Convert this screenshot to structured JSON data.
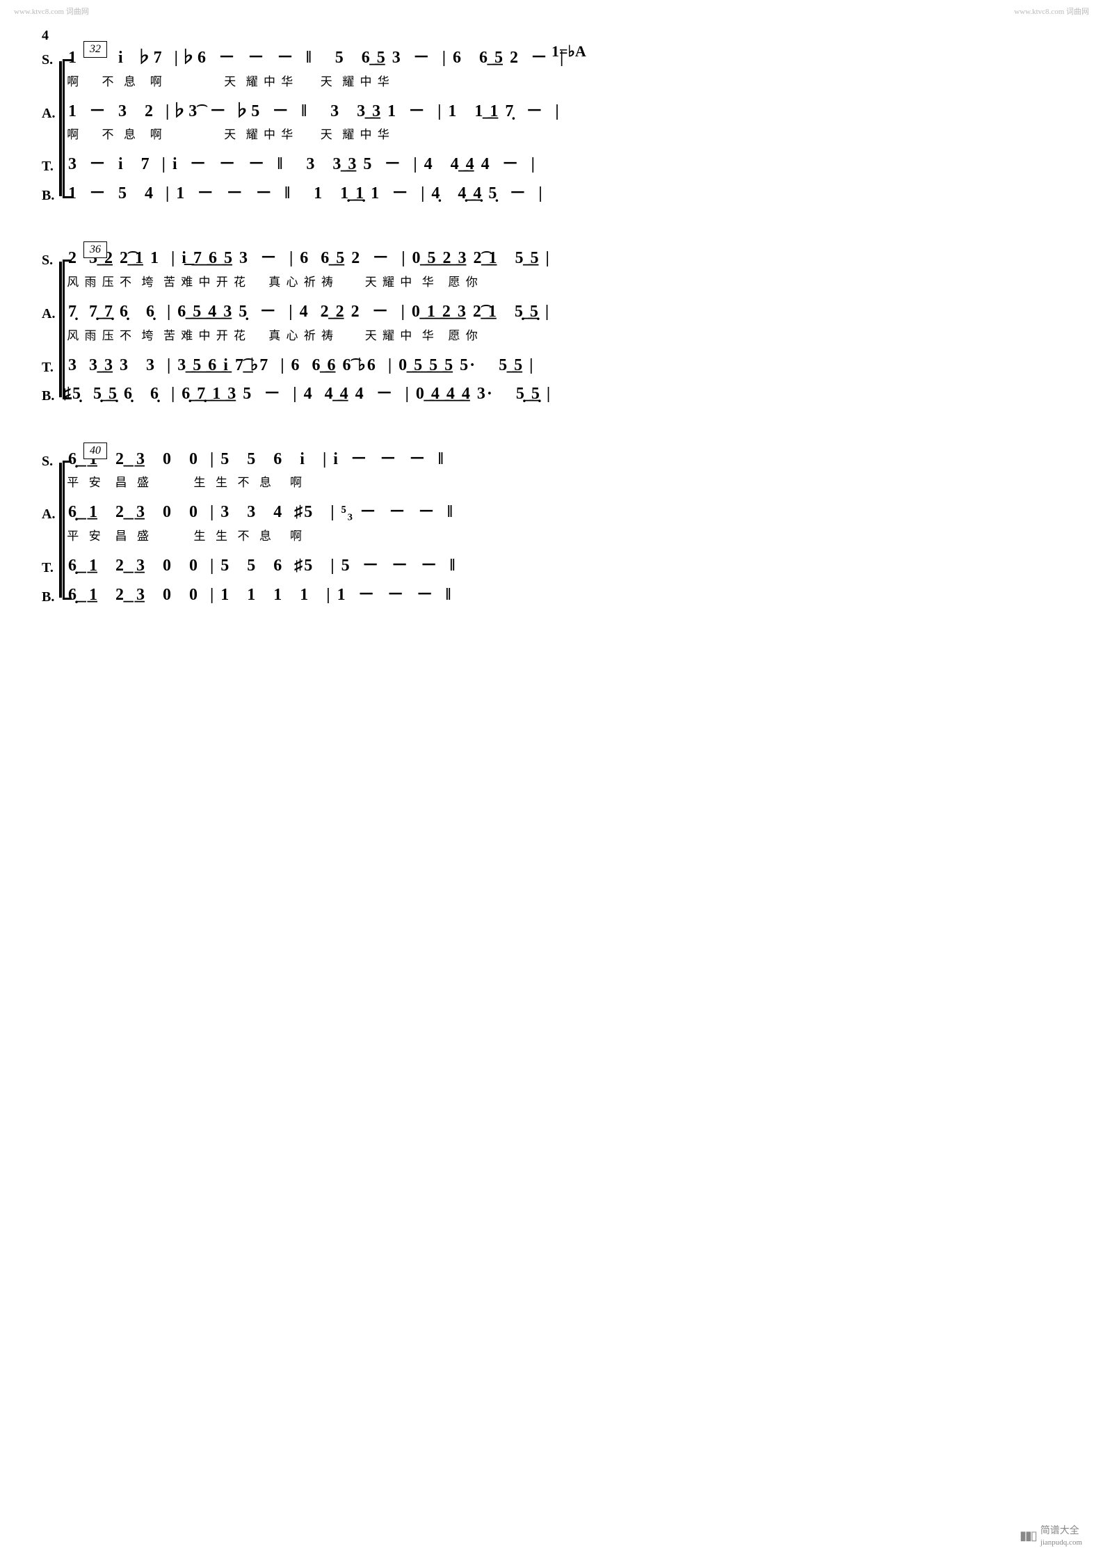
{
  "watermark": "www.ktvc8.com 词曲网",
  "page_number": "4",
  "key_change": "1=♭A",
  "footer": {
    "text": "简谱大全",
    "url": "jianpudq.com"
  },
  "systems": [
    {
      "measure": "32",
      "show_key_change": true,
      "parts": [
        {
          "label": "S.",
          "notes": " 1  －  i  ♭7  |♭6  －  －  －  ‖    5   6͟ ͟5 3  －  | 6   6͟ ͟5 2  －  |",
          "lyrics": " 啊     不  息   啊              天  耀 中 华      天  耀 中 华"
        },
        {
          "label": "A.",
          "notes": " 1  －  3   2  |♭3͡  － ♭5  －  ‖    3   3͟ ͟3 1  －  | 1   1͟ ͟1 7̣  －  |",
          "lyrics": " 啊     不  息   啊              天  耀 中 华      天  耀 中 华"
        },
        {
          "label": "T.",
          "notes": " 3  －  i   7  | i  －  －  －  ‖    3   3͟ ͟3 5  －  | 4   4͟ ͟4 4  －  |",
          "lyrics": ""
        },
        {
          "label": "B.",
          "notes": " 1  －  5   4  | 1  －  －  －  ‖    1   1̣͟ ͟1̣ 1  －  | 4̣   4̣͟ ͟4̣ 5̣  －  |",
          "lyrics": ""
        }
      ]
    },
    {
      "measure": "36",
      "show_key_change": false,
      "parts": [
        {
          "label": "S.",
          "notes": " 2  3͟ ͟2 2͟͡ ͟1 1  | i͟ ͟7͟ ͟6͟ ͟5 3  －  | 6  6͟ ͟5 2  －  | 0͟ ͟5͟ ͟2͟ ͟3 2͟͡ ͟1   5͟ ͟5 |",
          "lyrics": " 风 雨 压 不  垮  苦 难 中 开 花     真 心 祈 祷       天 耀 中  华   愿 你"
        },
        {
          "label": "A.",
          "notes": " 7̣  7̣͟ ͟7̣ 6̣   6̣  | 6͟ ͟5͟ ͟4͟ ͟3 5̣  －  | 4  2͟ ͟2 2  －  | 0͟ ͟1͟ ͟2͟ ͟3 2͟͡ ͟1   5̣͟ ͟5̣ |",
          "lyrics": " 风 雨 压 不  垮  苦 难 中 开 花     真 心 祈 祷       天 耀 中  华   愿 你"
        },
        {
          "label": "T.",
          "notes": " 3  3͟ ͟3 3   3  | 3͟ ͟5͟ ͟6͟ ͟i 7͟͡ ♭7  | 6  6͟ ͟6 6͡ ♭6  | 0͟ ͟5͟ ͟5͟ ͟5 5·    5͟ ͟5 |",
          "lyrics": ""
        },
        {
          "label": "B.",
          "notes": "♯5̣  5̣͟ ͟5̣ 6̣   6̣  | 6̣͟ ͟7̣͟ ͟1͟ ͟3 5  －  | 4  4͟ ͟4 4  －  | 0͟ ͟4͟ ͟4͟ ͟4 3·    5̣͟ ͟5̣ |",
          "lyrics": ""
        }
      ]
    },
    {
      "measure": "40",
      "show_key_change": false,
      "parts": [
        {
          "label": "S.",
          "notes": " 6̣͟  ͟1   2͟  ͟3   0   0  | 5   5   6   i   | i  －  －  －  ‖",
          "lyrics": " 平  安   昌  盛          生  生  不  息    啊"
        },
        {
          "label": "A.",
          "notes": " 6̣͟  ͟1   2͟  ͟3   0   0  | 3   3   4  ♯5   | ⁵₃ －  －  －  ‖",
          "lyrics": " 平  安   昌  盛          生  生  不  息    啊"
        },
        {
          "label": "T.",
          "notes": " 6̣͟  ͟1   2͟  ͟3   0   0  | 5   5   6  ♯5   | 5  －  －  －  ‖",
          "lyrics": ""
        },
        {
          "label": "B.",
          "notes": " 6̣͟  ͟1   2͟  ͟3   0   0  | 1   1   1   1   | 1  －  －  －  ‖",
          "lyrics": ""
        }
      ]
    }
  ]
}
